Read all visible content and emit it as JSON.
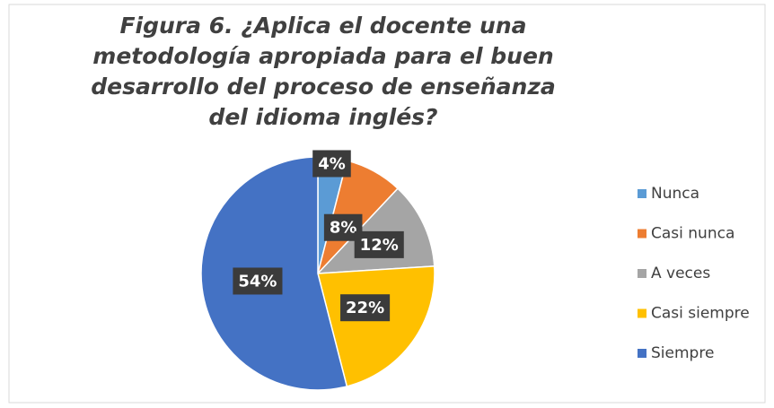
{
  "chart_data": {
    "type": "pie",
    "title": "Figura 6.  ¿Aplica el docente una metodología apropiada para el buen desarrollo del proceso de enseñanza del idioma inglés?",
    "categories": [
      "Nunca",
      "Casi nunca",
      "A veces",
      "Casi siempre",
      "Siempre"
    ],
    "values": [
      4,
      8,
      12,
      22,
      54
    ],
    "value_labels": [
      "4%",
      "8%",
      "12%",
      "22%",
      "54%"
    ],
    "colors": [
      "#5b9bd5",
      "#ed7d31",
      "#a5a5a5",
      "#ffc000",
      "#4472c4"
    ],
    "legend": "right"
  }
}
